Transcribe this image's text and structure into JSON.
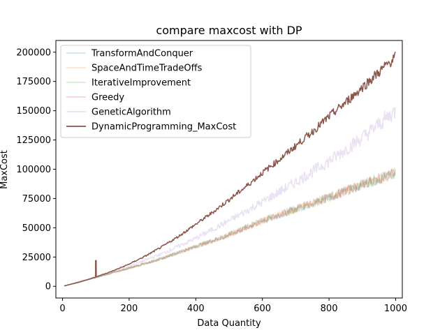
{
  "chart_data": {
    "type": "line",
    "title": "compare maxcost with DP",
    "xlabel": "Data Quantity",
    "ylabel": "MaxCost",
    "xlim": [
      -20,
      1020
    ],
    "ylim": [
      -10000,
      210000
    ],
    "xticks": [
      0,
      200,
      400,
      600,
      800,
      1000
    ],
    "yticks": [
      0,
      25000,
      50000,
      75000,
      100000,
      125000,
      150000,
      175000,
      200000
    ],
    "legend_position": "upper-left",
    "grid": false,
    "series": [
      {
        "name": "TransformAndConquer",
        "color": "#1f77b4",
        "alpha": 0.2,
        "x": [
          0,
          100,
          200,
          300,
          400,
          500,
          600,
          700,
          800,
          900,
          1000
        ],
        "y": [
          0,
          7500,
          15500,
          24000,
          34000,
          44000,
          56000,
          66000,
          76000,
          87000,
          97000
        ]
      },
      {
        "name": "SpaceAndTimeTradeOffs",
        "color": "#ff7f0e",
        "alpha": 0.2,
        "x": [
          0,
          100,
          200,
          300,
          400,
          500,
          600,
          700,
          800,
          900,
          1000
        ],
        "y": [
          0,
          7500,
          15500,
          24000,
          34000,
          44000,
          56000,
          66000,
          76000,
          87000,
          97000
        ]
      },
      {
        "name": "IterativeImprovement",
        "color": "#2ca02c",
        "alpha": 0.2,
        "x": [
          0,
          100,
          200,
          300,
          400,
          500,
          600,
          700,
          800,
          900,
          1000
        ],
        "y": [
          0,
          7500,
          15500,
          24000,
          34000,
          44000,
          56000,
          66000,
          76000,
          87000,
          97000
        ]
      },
      {
        "name": "Greedy",
        "color": "#d62728",
        "alpha": 0.2,
        "x": [
          0,
          100,
          200,
          300,
          400,
          500,
          600,
          700,
          800,
          900,
          1000
        ],
        "y": [
          0,
          7500,
          15500,
          24000,
          34000,
          44000,
          56000,
          66000,
          76000,
          87000,
          97000
        ]
      },
      {
        "name": "GeneticAlgorithm",
        "color": "#9467bd",
        "alpha": 0.2,
        "x": [
          0,
          100,
          200,
          300,
          400,
          500,
          600,
          700,
          800,
          900,
          1000
        ],
        "y": [
          0,
          8000,
          17000,
          28000,
          41000,
          56000,
          72000,
          89000,
          107000,
          127000,
          150000
        ]
      },
      {
        "name": "DynamicProgramming_MaxCost",
        "color": "#8c564b",
        "alpha": 1.0,
        "x": [
          0,
          50,
          100,
          150,
          200,
          250,
          300,
          350,
          400,
          450,
          500,
          550,
          600,
          650,
          700,
          750,
          800,
          850,
          900,
          950,
          1000
        ],
        "y": [
          0,
          3500,
          8000,
          13000,
          19000,
          26000,
          34000,
          43000,
          53000,
          63000,
          74000,
          85000,
          97000,
          108000,
          120000,
          132000,
          145000,
          157000,
          170000,
          183000,
          196000
        ],
        "spike": {
          "x": 100,
          "y": 22000
        }
      }
    ]
  }
}
